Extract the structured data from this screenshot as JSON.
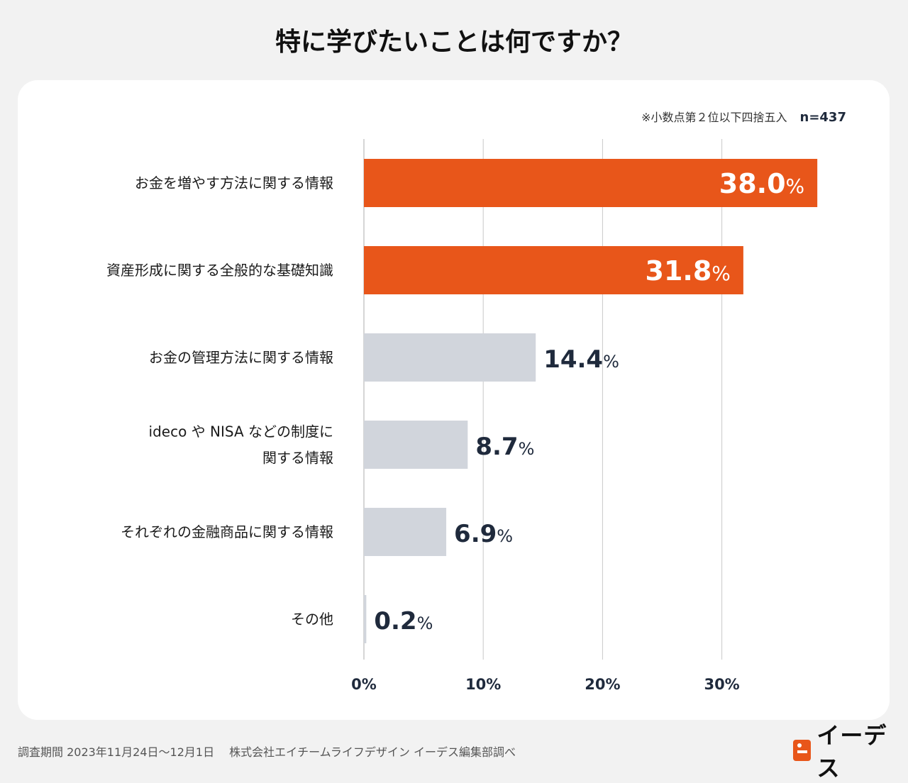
{
  "title": "特に学びたいことは何ですか？",
  "note": "※小数点第２位以下四捨五入",
  "sample_size": "n=437",
  "footer": "調査期間 2023年11月24日〜12月1日　 株式会社エイチームライフデザイン イーデス編集部調べ",
  "logo_text": "イーデス",
  "colors": {
    "highlight": "#e8561a",
    "muted": "#d1d5dc",
    "grid": "#c9c9c9",
    "value_dark": "#1f2a3c",
    "value_light": "#ffffff"
  },
  "chart_data": {
    "type": "bar",
    "orientation": "horizontal",
    "title": "特に学びたいことは何ですか？",
    "xlabel": "",
    "ylabel": "",
    "xlim": [
      0,
      38
    ],
    "x_ticks": [
      0,
      10,
      20,
      30
    ],
    "x_tick_labels": [
      "0%",
      "10%",
      "20%",
      "30%"
    ],
    "value_suffix": "%",
    "grid": true,
    "categories": [
      [
        "お金を増やす方法に関する情報"
      ],
      [
        "資産形成に関する全般的な基礎知識"
      ],
      [
        "お金の管理方法に関する情報"
      ],
      [
        "ideco や NISA などの制度に",
        "関する情報"
      ],
      [
        "それぞれの金融商品に関する情報"
      ],
      [
        "その他"
      ]
    ],
    "values": [
      38.0,
      31.8,
      14.4,
      8.7,
      6.9,
      0.2
    ],
    "value_labels": [
      "38.0",
      "31.8",
      "14.4",
      "8.7",
      "6.9",
      "0.2"
    ],
    "highlighted": [
      true,
      true,
      false,
      false,
      false,
      false
    ]
  }
}
